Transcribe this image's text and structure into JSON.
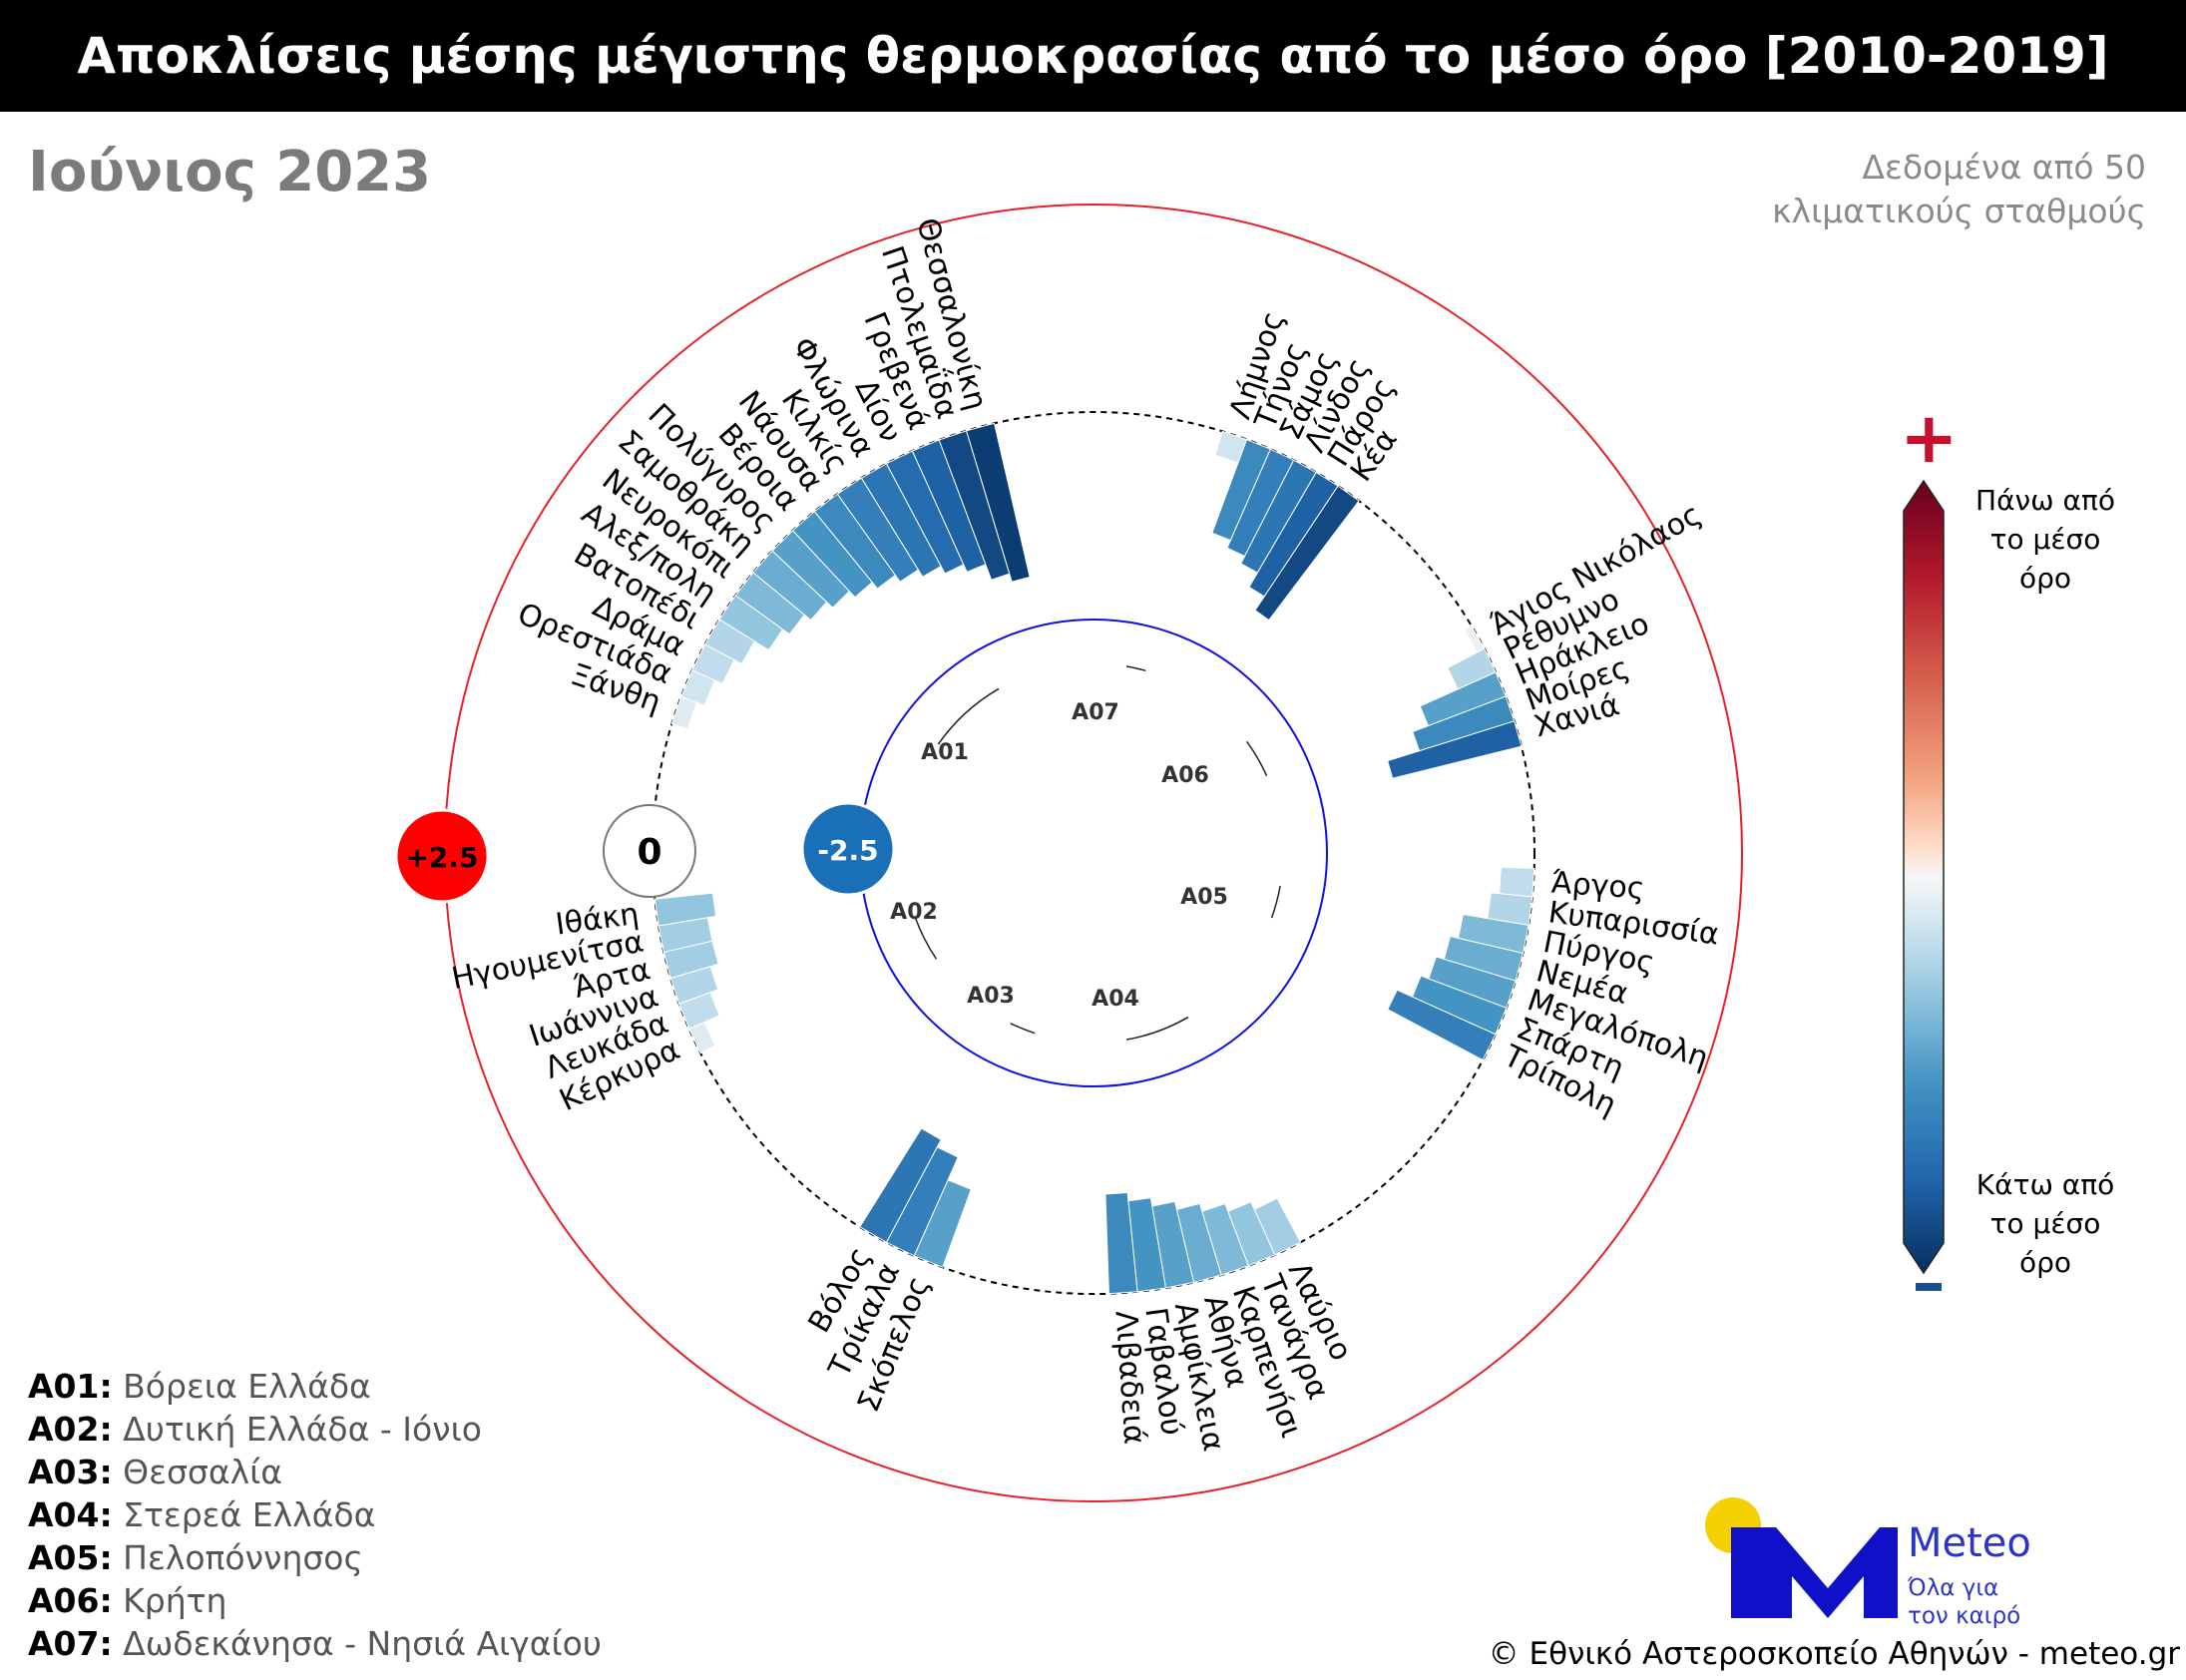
{
  "title": "Αποκλίσεις μέσης μέγιστης θερμοκρασίας από το μέσο όρο [2010-2019]",
  "month": "Ιούνιος 2023",
  "note": [
    "Δεδομένα από 50",
    "κλιματικούς σταθμούς"
  ],
  "colorbar": {
    "plus": "+",
    "minus": "-",
    "high_label": [
      "Πάνω από",
      "το μέσο",
      "όρο"
    ],
    "low_label": [
      "Κάτω από",
      "το μέσο",
      "όρο"
    ]
  },
  "legend": [
    {
      "code": "A01:",
      "name": "Βόρεια Ελλάδα"
    },
    {
      "code": "A02:",
      "name": "Δυτική Ελλάδα - Ιόνιο"
    },
    {
      "code": "A03:",
      "name": "Θεσσαλία"
    },
    {
      "code": "A04:",
      "name": "Στερεά Ελλάδα"
    },
    {
      "code": "A05:",
      "name": "Πελοπόννησος"
    },
    {
      "code": "A06:",
      "name": "Κρήτη"
    },
    {
      "code": "A07:",
      "name": "Δωδεκάνησα - Νησιά Αιγαίου"
    }
  ],
  "logo": {
    "name": "Meteo",
    "tagline": [
      "Όλα για",
      "τον καιρό"
    ]
  },
  "copyright": "© Εθνικό Αστεροσκοπείο Αθηνών - meteo.gr",
  "colors": {
    "outer_ring": "#e8202a",
    "inner_ring": "#1010e0",
    "zero_ring": "#000000",
    "scale_plus": "#ff0000",
    "scale_minus": "#1a70b8"
  },
  "chart_data": {
    "type": "radial-bar",
    "scale_labels": {
      "outer": "+2.5",
      "middle": "0",
      "inner": "-2.5"
    },
    "rlim": [
      -2.5,
      2.5
    ],
    "units": "°C",
    "groups": [
      {
        "code": "A01",
        "stations": [
          {
            "name": "Ξάνθη",
            "value": -0.2
          },
          {
            "name": "Ορεστιάδα",
            "value": -0.3
          },
          {
            "name": "Δράμα",
            "value": -0.4
          },
          {
            "name": "Βατοπέδι",
            "value": -0.5
          },
          {
            "name": "Αλεξ/πολη",
            "value": -0.7
          },
          {
            "name": "Νευροκόπι",
            "value": -0.8
          },
          {
            "name": "Σαμοθράκη",
            "value": -0.9
          },
          {
            "name": "Πολύγυρος",
            "value": -1.0
          },
          {
            "name": "Βέροια",
            "value": -1.1
          },
          {
            "name": "Νάουσα",
            "value": -1.2
          },
          {
            "name": "Κιλκίς",
            "value": -1.3
          },
          {
            "name": "Φλώρινα",
            "value": -1.4
          },
          {
            "name": "Δίον",
            "value": -1.5
          },
          {
            "name": "Γρεβενά",
            "value": -1.6
          },
          {
            "name": "Πτολεμαΐδα",
            "value": -1.8
          },
          {
            "name": "Θεσσαλονίκη",
            "value": -1.9
          }
        ]
      },
      {
        "code": "A07",
        "stations": [
          {
            "name": "Λήμνος",
            "value": -0.3
          },
          {
            "name": "Τήνος",
            "value": -1.2
          },
          {
            "name": "Σάμος",
            "value": -1.3
          },
          {
            "name": "Λίνδος",
            "value": -1.4
          },
          {
            "name": "Πάρος",
            "value": -1.6
          },
          {
            "name": "Κέα",
            "value": -1.8
          }
        ]
      },
      {
        "code": "A06",
        "stations": [
          {
            "name": "Άγιος Νικόλαος",
            "value": -0.1
          },
          {
            "name": "Ρέθυμνο",
            "value": -0.5
          },
          {
            "name": "Ηράκλειο",
            "value": -1.0
          },
          {
            "name": "Μοίρες",
            "value": -1.2
          },
          {
            "name": "Χανιά",
            "value": -1.6
          }
        ]
      },
      {
        "code": "A05",
        "stations": [
          {
            "name": "Άργος",
            "value": -0.4
          },
          {
            "name": "Κυπαρισσία",
            "value": -0.5
          },
          {
            "name": "Πύργος",
            "value": -0.8
          },
          {
            "name": "Νεμέα",
            "value": -0.9
          },
          {
            "name": "Μεγαλόπολη",
            "value": -1.0
          },
          {
            "name": "Σπάρτη",
            "value": -1.1
          },
          {
            "name": "Τρίπολη",
            "value": -1.3
          }
        ]
      },
      {
        "code": "A04",
        "stations": [
          {
            "name": "Λαύριο",
            "value": -0.6
          },
          {
            "name": "Τανάγρα",
            "value": -0.7
          },
          {
            "name": "Καρπενήσι",
            "value": -0.8
          },
          {
            "name": "Αθήνα",
            "value": -0.9
          },
          {
            "name": "Αμφίκλεια",
            "value": -1.0
          },
          {
            "name": "Γαβαλού",
            "value": -1.1
          },
          {
            "name": "Λιβαδειά",
            "value": -1.2
          }
        ]
      },
      {
        "code": "A03",
        "stations": [
          {
            "name": "Σκόπελος",
            "value": -1.0
          },
          {
            "name": "Τρίκαλα",
            "value": -1.3
          },
          {
            "name": "Βόλος",
            "value": -1.4
          }
        ]
      },
      {
        "code": "A02",
        "stations": [
          {
            "name": "Κέρκυρα",
            "value": -0.2
          },
          {
            "name": "Λευκάδα",
            "value": -0.4
          },
          {
            "name": "Ιωάννινα",
            "value": -0.5
          },
          {
            "name": "Άρτα",
            "value": -0.6
          },
          {
            "name": "Ηγουμενίτσα",
            "value": -0.6
          },
          {
            "name": "Ιθάκη",
            "value": -0.7
          }
        ]
      }
    ]
  }
}
